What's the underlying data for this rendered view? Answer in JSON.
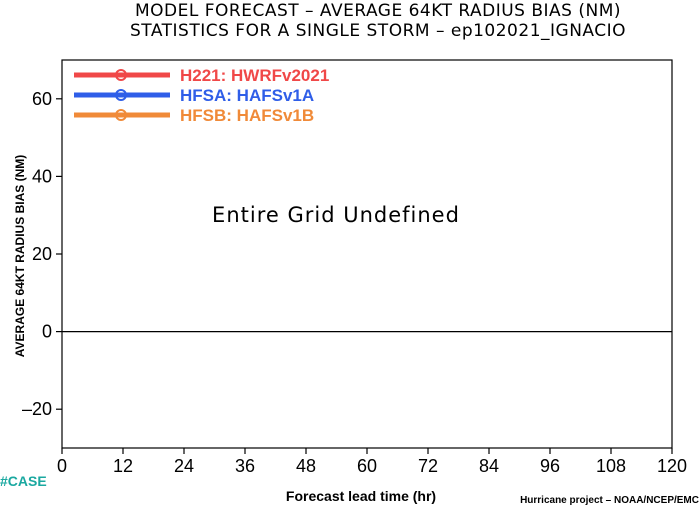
{
  "chart_data": {
    "type": "line",
    "title": "MODEL FORECAST – AVERAGE 64KT RADIUS BIAS (NM)",
    "subtitle": "STATISTICS FOR A SINGLE STORM – ep102021_IGNACIO",
    "xlabel": "Forecast lead time (hr)",
    "ylabel": "AVERAGE 64KT RADIUS BIAS (NM)",
    "xlim": [
      0,
      120
    ],
    "ylim": [
      -30,
      70
    ],
    "x_ticks": [
      0,
      12,
      24,
      36,
      48,
      60,
      72,
      84,
      96,
      108,
      120
    ],
    "y_ticks": [
      -20,
      0,
      20,
      40,
      60
    ],
    "y_tick_labels": [
      "–20",
      "0",
      "20",
      "40",
      "60"
    ],
    "reference_line_y": 0,
    "grid": false,
    "legend_position": "top-left",
    "series": [
      {
        "name": "H221: HWRFv2021",
        "color": "#f04848",
        "values": []
      },
      {
        "name": "HFSA: HAFSv1A",
        "color": "#2f5ee8",
        "values": []
      },
      {
        "name": "HFSB: HAFSv1B",
        "color": "#f08a38",
        "values": []
      }
    ],
    "annotation": "Entire Grid Undefined",
    "credit": "Hurricane project – NOAA/NCEP/EMC",
    "tag": "#CASE",
    "tag_color": "#1aa8a0"
  }
}
